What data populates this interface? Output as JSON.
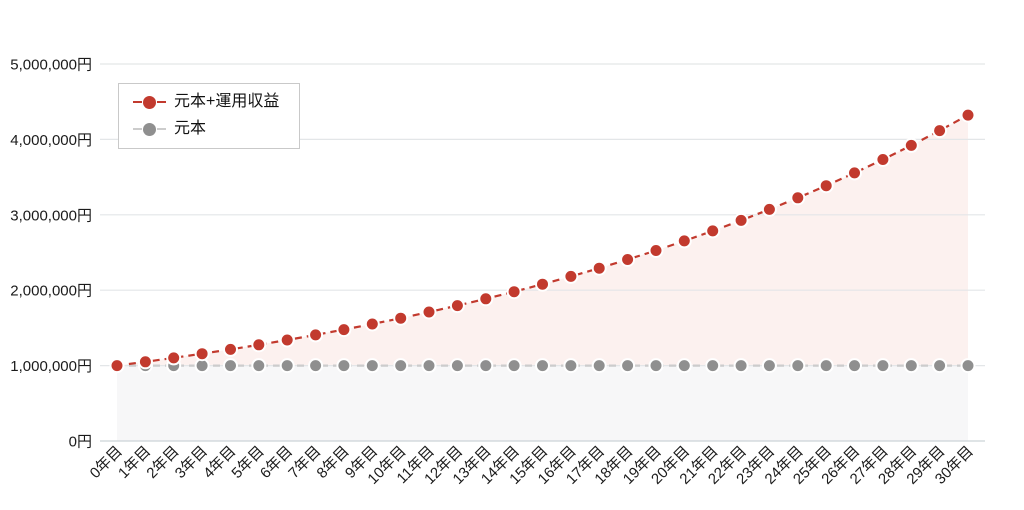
{
  "chart_data": {
    "type": "line",
    "title": "",
    "xlabel": "",
    "ylabel": "",
    "x_unit": "年目",
    "x_tick_labels": [
      "0年目",
      "1年目",
      "2年目",
      "3年目",
      "4年目",
      "5年目",
      "6年目",
      "7年目",
      "8年目",
      "9年目",
      "10年目",
      "11年目",
      "12年目",
      "13年目",
      "14年目",
      "15年目",
      "16年目",
      "17年目",
      "18年目",
      "19年目",
      "20年目",
      "21年目",
      "22年目",
      "23年目",
      "24年目",
      "25年目",
      "26年目",
      "27年目",
      "28年目",
      "29年目",
      "30年目"
    ],
    "ylim": [
      0,
      5000000
    ],
    "y_ticks": [
      {
        "value": 0,
        "label": "0円"
      },
      {
        "value": 1000000,
        "label": "1,000,000円"
      },
      {
        "value": 2000000,
        "label": "2,000,000円"
      },
      {
        "value": 3000000,
        "label": "3,000,000円"
      },
      {
        "value": 4000000,
        "label": "4,000,000円"
      },
      {
        "value": 5000000,
        "label": "5,000,000円"
      }
    ],
    "grid": true,
    "legend_position": "top-left",
    "line_style": "dashed-with-points",
    "series": [
      {
        "name": "元本+運用収益",
        "point_color": "#c23a2e",
        "line_color": "#c23a2e",
        "area_color": "#fcf1ef",
        "values": [
          1000000,
          1050000,
          1102500,
          1157625,
          1215506,
          1276282,
          1340096,
          1407100,
          1477455,
          1551328,
          1628895,
          1710339,
          1795856,
          1885649,
          1979932,
          2078928,
          2182875,
          2292018,
          2406619,
          2526950,
          2653298,
          2785963,
          2925261,
          3071524,
          3225100,
          3386355,
          3555673,
          3733456,
          3920129,
          4116136,
          4321942
        ]
      },
      {
        "name": "元本",
        "point_color": "#8f8f8f",
        "line_color": "#cccccc",
        "area_color": "#f7f7f8",
        "values": [
          1000000,
          1000000,
          1000000,
          1000000,
          1000000,
          1000000,
          1000000,
          1000000,
          1000000,
          1000000,
          1000000,
          1000000,
          1000000,
          1000000,
          1000000,
          1000000,
          1000000,
          1000000,
          1000000,
          1000000,
          1000000,
          1000000,
          1000000,
          1000000,
          1000000,
          1000000,
          1000000,
          1000000,
          1000000,
          1000000,
          1000000
        ]
      }
    ],
    "colors": {
      "gridline": "#e3e6e8",
      "zero_line": "#ccd3d7",
      "axis_text": "#1b1b1b",
      "point_halo": "#ffffff"
    }
  }
}
